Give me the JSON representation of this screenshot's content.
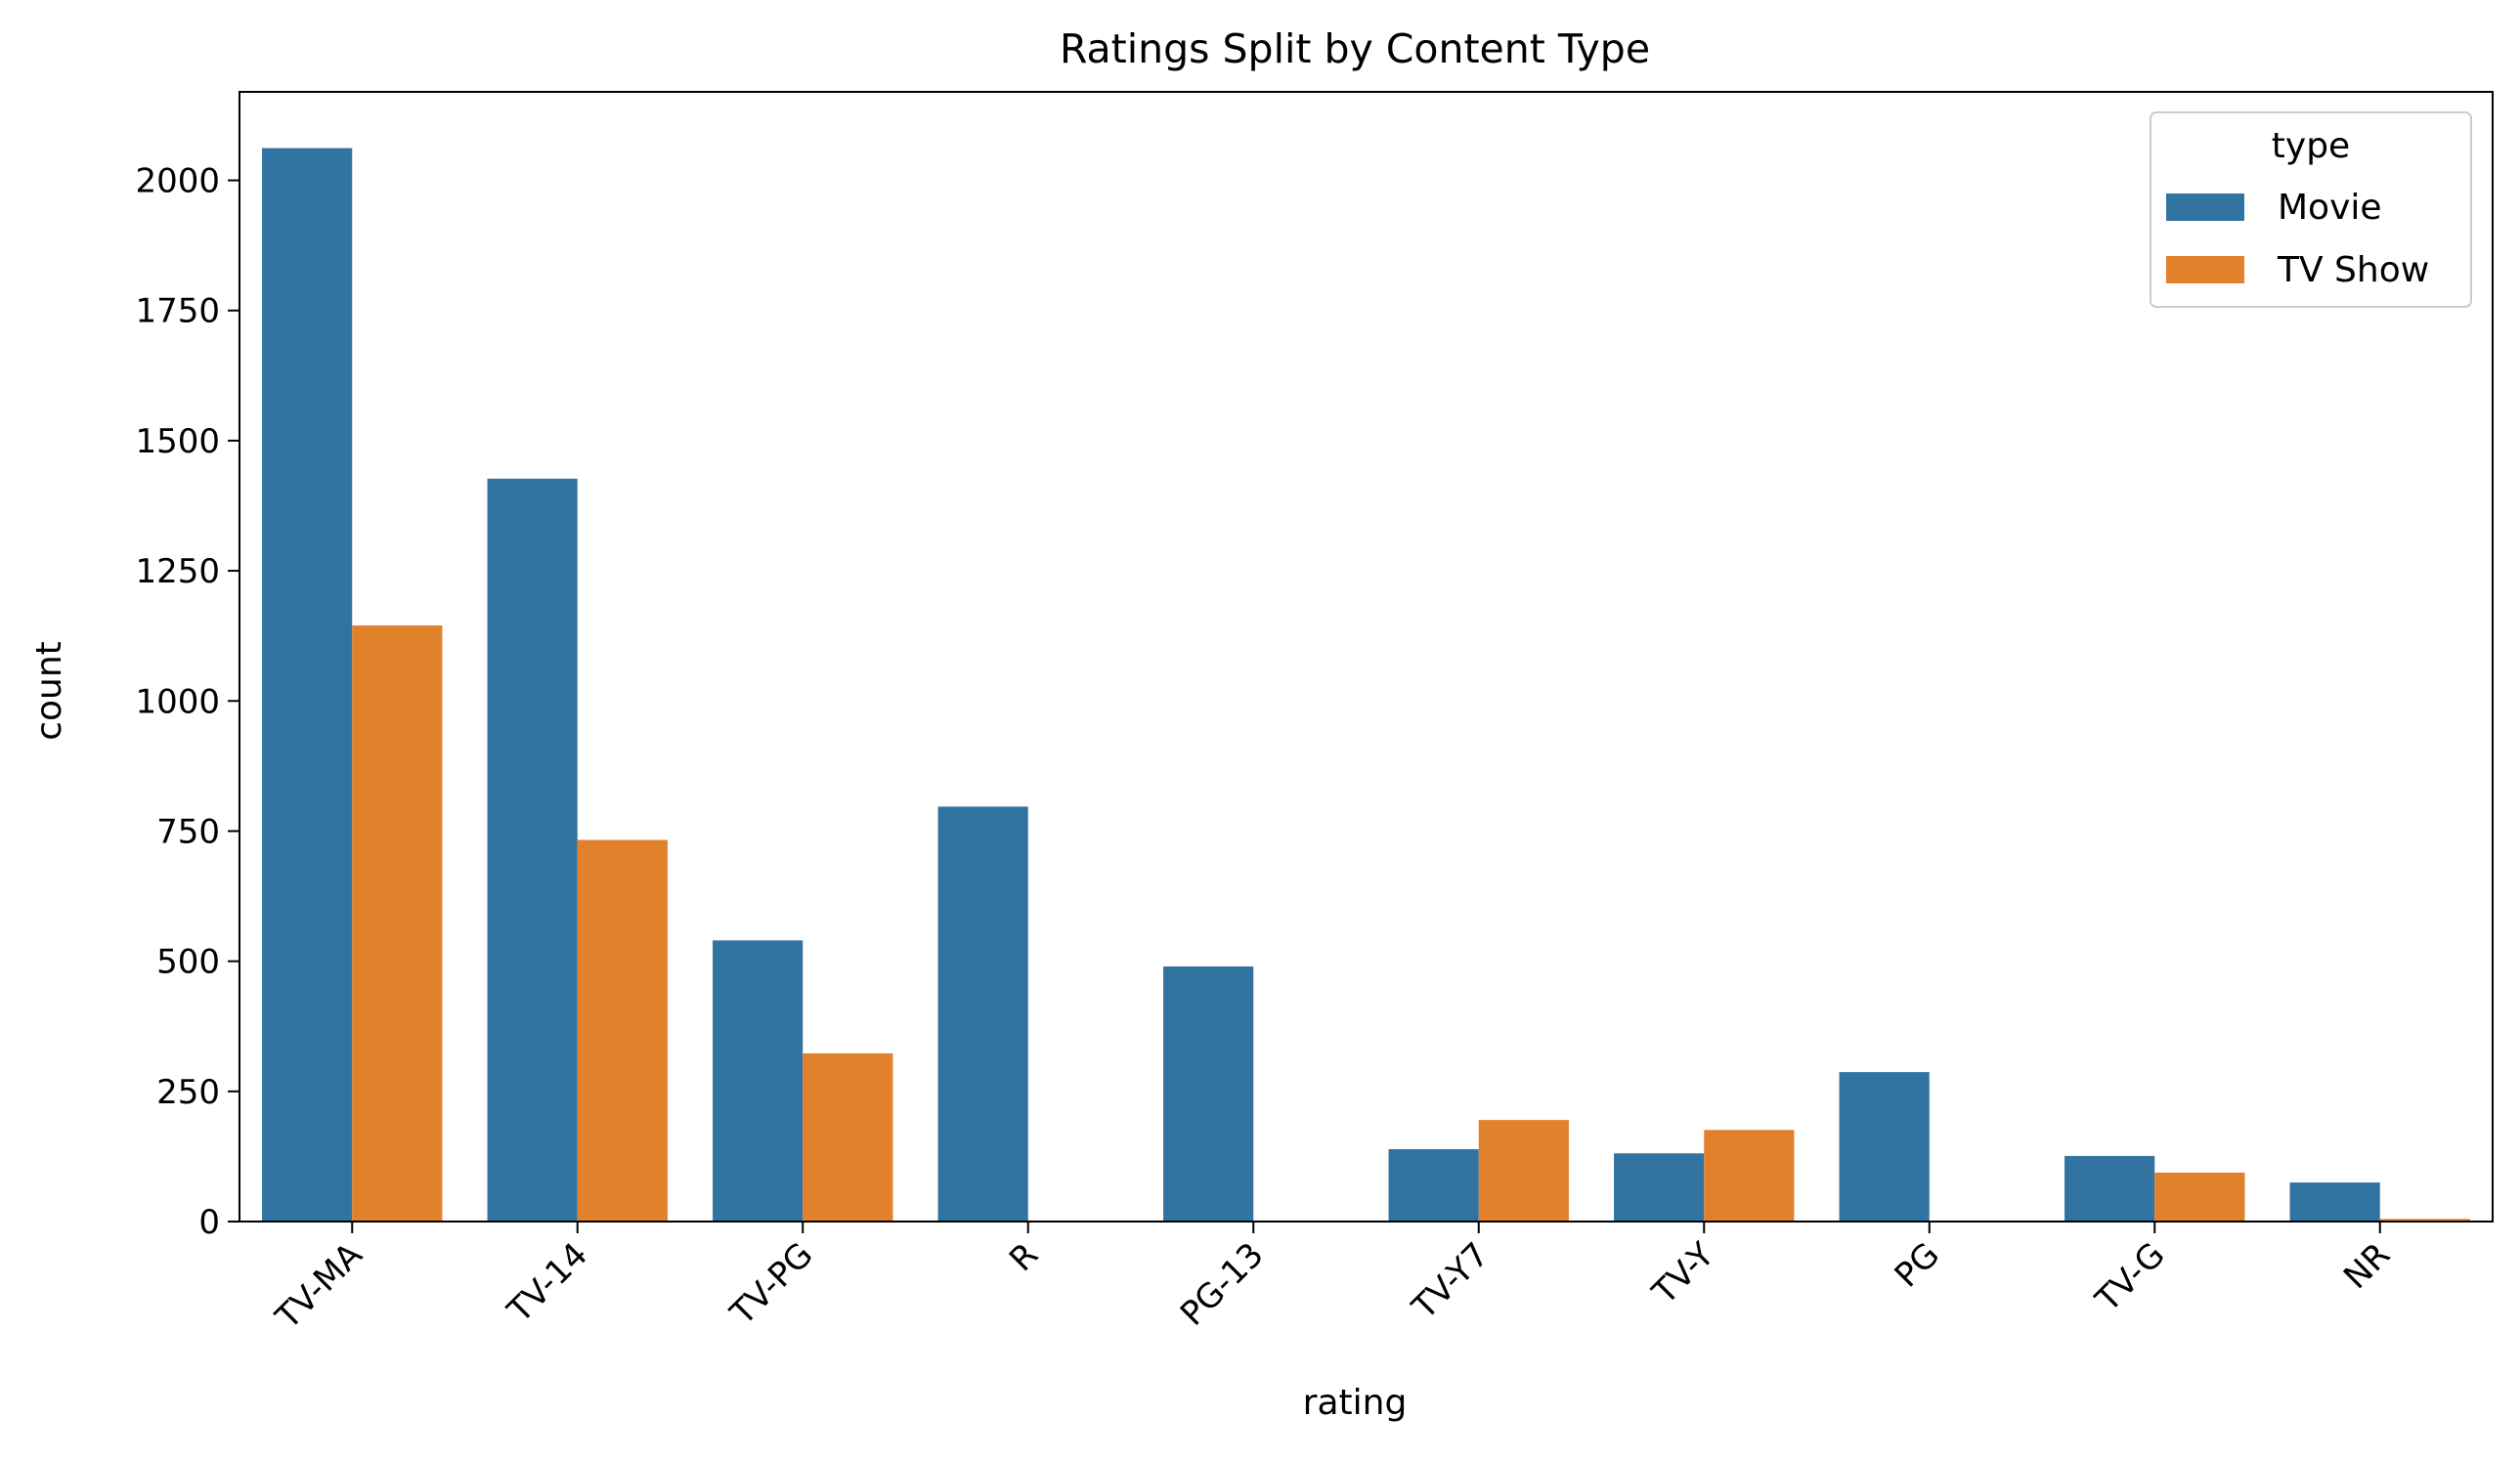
{
  "chart_data": {
    "type": "bar",
    "title": "Ratings Split by Content Type",
    "xlabel": "rating",
    "ylabel": "count",
    "categories": [
      "TV-MA",
      "TV-14",
      "TV-PG",
      "R",
      "PG-13",
      "TV-Y7",
      "TV-Y",
      "PG",
      "TV-G",
      "NR"
    ],
    "series": [
      {
        "name": "Movie",
        "color": "#3274a1",
        "values": [
          2062,
          1427,
          540,
          797,
          490,
          139,
          131,
          287,
          126,
          75
        ]
      },
      {
        "name": "TV Show",
        "color": "#e1812c",
        "values": [
          1145,
          733,
          323,
          2,
          0,
          195,
          176,
          0,
          94,
          5
        ]
      }
    ],
    "ylim": [
      0,
      2170
    ],
    "yticks": [
      0,
      250,
      500,
      750,
      1000,
      1250,
      1500,
      1750,
      2000
    ],
    "grid": false,
    "legend": {
      "title": "type",
      "placement": "top-right"
    }
  }
}
